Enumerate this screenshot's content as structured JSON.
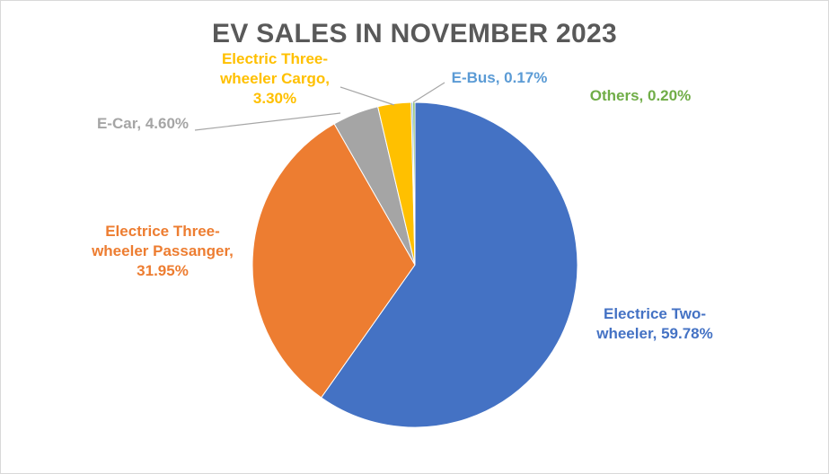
{
  "chart_data": {
    "type": "pie",
    "title": "EV SALES IN NOVEMBER 2023",
    "slices": [
      {
        "label_lines": [
          "Electrice Two-",
          "wheeler, 59.78%"
        ],
        "category": "Electrice Two-wheeler",
        "value": 59.78,
        "color": "#4472c4"
      },
      {
        "label_lines": [
          "Electrice Three-",
          "wheeler Passanger,",
          "31.95%"
        ],
        "category": "Electrice Three-wheeler Passanger",
        "value": 31.95,
        "color": "#ed7d31"
      },
      {
        "label_lines": [
          "E-Car, 4.60%"
        ],
        "category": "E-Car",
        "value": 4.6,
        "color": "#a5a5a5"
      },
      {
        "label_lines": [
          "Electric Three-",
          "wheeler Cargo,",
          "3.30%"
        ],
        "category": "Electric Three-wheeler Cargo",
        "value": 3.3,
        "color": "#ffc000"
      },
      {
        "label_lines": [
          "E-Bus, 0.17%"
        ],
        "category": "E-Bus",
        "value": 0.17,
        "color": "#5b9bd5"
      },
      {
        "label_lines": [
          "Others, 0.20%"
        ],
        "category": "Others",
        "value": 0.2,
        "color": "#70ad47"
      }
    ],
    "legend": "none",
    "data_labels": "outside with leader lines"
  }
}
